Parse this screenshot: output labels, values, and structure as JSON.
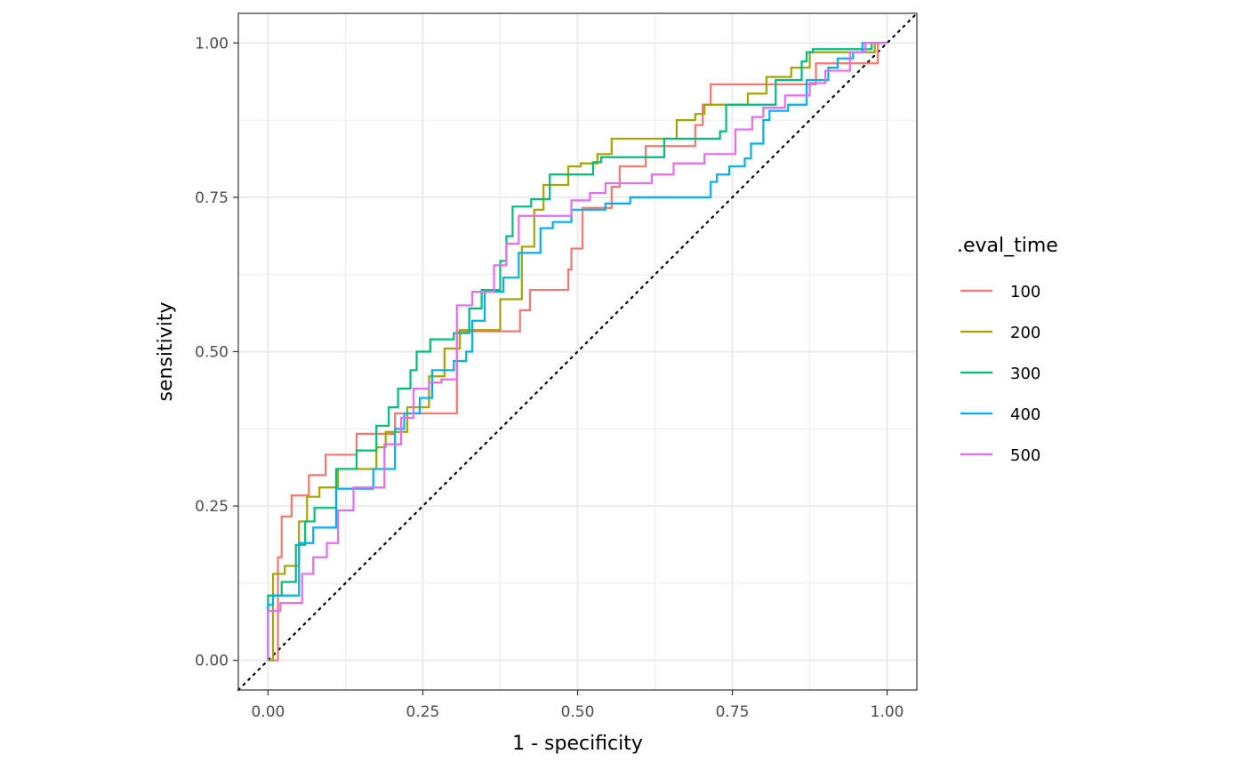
{
  "chart_data": {
    "type": "line",
    "xlabel": "1 - specificity",
    "ylabel": "sensitivity",
    "xlim": [
      -0.048,
      1.048
    ],
    "ylim": [
      -0.048,
      1.048
    ],
    "x_ticks": [
      0,
      0.25,
      0.5,
      0.75,
      1
    ],
    "x_tick_labels": [
      "0.00",
      "0.25",
      "0.50",
      "0.75",
      "1.00"
    ],
    "y_ticks": [
      0,
      0.25,
      0.5,
      0.75,
      1
    ],
    "y_tick_labels": [
      "0.00",
      "0.25",
      "0.50",
      "0.75",
      "1.00"
    ],
    "grid": true,
    "legend": {
      "title": ".eval_time",
      "position": "right"
    },
    "reference_line": {
      "style": "dotted",
      "color": "#000000",
      "from": [
        -0.048,
        -0.048
      ],
      "to": [
        1.048,
        1.048
      ]
    },
    "series": [
      {
        "name": "100",
        "color": "#F8766D",
        "points": [
          [
            0,
            0
          ],
          [
            0.016,
            0
          ],
          [
            0.016,
            0.167
          ],
          [
            0.022,
            0.167
          ],
          [
            0.022,
            0.233
          ],
          [
            0.038,
            0.233
          ],
          [
            0.038,
            0.267
          ],
          [
            0.066,
            0.267
          ],
          [
            0.066,
            0.3
          ],
          [
            0.093,
            0.3
          ],
          [
            0.093,
            0.333
          ],
          [
            0.143,
            0.333
          ],
          [
            0.143,
            0.367
          ],
          [
            0.205,
            0.367
          ],
          [
            0.205,
            0.4
          ],
          [
            0.305,
            0.4
          ],
          [
            0.305,
            0.533
          ],
          [
            0.407,
            0.533
          ],
          [
            0.407,
            0.567
          ],
          [
            0.423,
            0.567
          ],
          [
            0.423,
            0.6
          ],
          [
            0.485,
            0.6
          ],
          [
            0.485,
            0.633
          ],
          [
            0.49,
            0.633
          ],
          [
            0.49,
            0.667
          ],
          [
            0.508,
            0.667
          ],
          [
            0.508,
            0.733
          ],
          [
            0.555,
            0.733
          ],
          [
            0.555,
            0.767
          ],
          [
            0.568,
            0.767
          ],
          [
            0.568,
            0.8
          ],
          [
            0.61,
            0.8
          ],
          [
            0.61,
            0.833
          ],
          [
            0.69,
            0.833
          ],
          [
            0.69,
            0.867
          ],
          [
            0.702,
            0.867
          ],
          [
            0.702,
            0.9
          ],
          [
            0.715,
            0.9
          ],
          [
            0.715,
            0.933
          ],
          [
            0.885,
            0.933
          ],
          [
            0.885,
            0.967
          ],
          [
            0.985,
            0.967
          ],
          [
            0.985,
            1
          ],
          [
            1,
            1
          ]
        ]
      },
      {
        "name": "200",
        "color": "#A3A500",
        "points": [
          [
            0,
            0
          ],
          [
            0.008,
            0
          ],
          [
            0.008,
            0.14
          ],
          [
            0.027,
            0.14
          ],
          [
            0.027,
            0.153
          ],
          [
            0.05,
            0.153
          ],
          [
            0.05,
            0.225
          ],
          [
            0.063,
            0.225
          ],
          [
            0.063,
            0.265
          ],
          [
            0.083,
            0.265
          ],
          [
            0.083,
            0.28
          ],
          [
            0.113,
            0.28
          ],
          [
            0.113,
            0.31
          ],
          [
            0.175,
            0.31
          ],
          [
            0.175,
            0.345
          ],
          [
            0.19,
            0.345
          ],
          [
            0.19,
            0.37
          ],
          [
            0.225,
            0.37
          ],
          [
            0.225,
            0.41
          ],
          [
            0.26,
            0.41
          ],
          [
            0.26,
            0.46
          ],
          [
            0.285,
            0.46
          ],
          [
            0.285,
            0.505
          ],
          [
            0.31,
            0.505
          ],
          [
            0.31,
            0.535
          ],
          [
            0.375,
            0.535
          ],
          [
            0.375,
            0.585
          ],
          [
            0.41,
            0.585
          ],
          [
            0.41,
            0.67
          ],
          [
            0.43,
            0.67
          ],
          [
            0.43,
            0.73
          ],
          [
            0.445,
            0.73
          ],
          [
            0.445,
            0.77
          ],
          [
            0.485,
            0.77
          ],
          [
            0.485,
            0.8
          ],
          [
            0.505,
            0.8
          ],
          [
            0.505,
            0.805
          ],
          [
            0.532,
            0.805
          ],
          [
            0.532,
            0.82
          ],
          [
            0.555,
            0.82
          ],
          [
            0.555,
            0.845
          ],
          [
            0.66,
            0.845
          ],
          [
            0.66,
            0.875
          ],
          [
            0.69,
            0.875
          ],
          [
            0.69,
            0.885
          ],
          [
            0.705,
            0.885
          ],
          [
            0.705,
            0.9
          ],
          [
            0.775,
            0.9
          ],
          [
            0.775,
            0.918
          ],
          [
            0.805,
            0.918
          ],
          [
            0.805,
            0.945
          ],
          [
            0.845,
            0.945
          ],
          [
            0.845,
            0.96
          ],
          [
            0.875,
            0.96
          ],
          [
            0.875,
            0.985
          ],
          [
            0.98,
            0.985
          ],
          [
            0.98,
            1
          ],
          [
            1,
            1
          ]
        ]
      },
      {
        "name": "300",
        "color": "#00BF7D",
        "points": [
          [
            0,
            0
          ],
          [
            0,
            0.105
          ],
          [
            0.022,
            0.105
          ],
          [
            0.022,
            0.127
          ],
          [
            0.045,
            0.127
          ],
          [
            0.045,
            0.187
          ],
          [
            0.06,
            0.187
          ],
          [
            0.06,
            0.225
          ],
          [
            0.075,
            0.225
          ],
          [
            0.075,
            0.247
          ],
          [
            0.11,
            0.247
          ],
          [
            0.11,
            0.31
          ],
          [
            0.143,
            0.31
          ],
          [
            0.143,
            0.34
          ],
          [
            0.175,
            0.34
          ],
          [
            0.175,
            0.38
          ],
          [
            0.195,
            0.38
          ],
          [
            0.195,
            0.41
          ],
          [
            0.21,
            0.41
          ],
          [
            0.21,
            0.44
          ],
          [
            0.23,
            0.44
          ],
          [
            0.23,
            0.47
          ],
          [
            0.24,
            0.47
          ],
          [
            0.24,
            0.5
          ],
          [
            0.262,
            0.5
          ],
          [
            0.262,
            0.52
          ],
          [
            0.3,
            0.52
          ],
          [
            0.3,
            0.53
          ],
          [
            0.325,
            0.53
          ],
          [
            0.325,
            0.57
          ],
          [
            0.345,
            0.57
          ],
          [
            0.345,
            0.6
          ],
          [
            0.375,
            0.6
          ],
          [
            0.375,
            0.647
          ],
          [
            0.385,
            0.647
          ],
          [
            0.385,
            0.687
          ],
          [
            0.395,
            0.687
          ],
          [
            0.395,
            0.735
          ],
          [
            0.425,
            0.735
          ],
          [
            0.425,
            0.747
          ],
          [
            0.455,
            0.747
          ],
          [
            0.455,
            0.787
          ],
          [
            0.525,
            0.787
          ],
          [
            0.525,
            0.807
          ],
          [
            0.538,
            0.807
          ],
          [
            0.538,
            0.815
          ],
          [
            0.64,
            0.815
          ],
          [
            0.64,
            0.845
          ],
          [
            0.73,
            0.845
          ],
          [
            0.73,
            0.857
          ],
          [
            0.74,
            0.857
          ],
          [
            0.74,
            0.9
          ],
          [
            0.82,
            0.9
          ],
          [
            0.82,
            0.94
          ],
          [
            0.862,
            0.94
          ],
          [
            0.862,
            0.97
          ],
          [
            0.87,
            0.97
          ],
          [
            0.87,
            0.985
          ],
          [
            0.88,
            0.985
          ],
          [
            0.88,
            0.99
          ],
          [
            0.975,
            0.99
          ],
          [
            0.975,
            1
          ],
          [
            1,
            1
          ]
        ]
      },
      {
        "name": "400",
        "color": "#00B0F6",
        "points": [
          [
            0,
            0
          ],
          [
            0,
            0.09
          ],
          [
            0.008,
            0.09
          ],
          [
            0.008,
            0.105
          ],
          [
            0.05,
            0.105
          ],
          [
            0.05,
            0.19
          ],
          [
            0.073,
            0.19
          ],
          [
            0.073,
            0.215
          ],
          [
            0.11,
            0.215
          ],
          [
            0.11,
            0.278
          ],
          [
            0.17,
            0.278
          ],
          [
            0.17,
            0.31
          ],
          [
            0.205,
            0.31
          ],
          [
            0.205,
            0.375
          ],
          [
            0.22,
            0.375
          ],
          [
            0.22,
            0.4
          ],
          [
            0.245,
            0.4
          ],
          [
            0.245,
            0.425
          ],
          [
            0.265,
            0.425
          ],
          [
            0.265,
            0.47
          ],
          [
            0.3,
            0.47
          ],
          [
            0.3,
            0.485
          ],
          [
            0.32,
            0.485
          ],
          [
            0.32,
            0.5
          ],
          [
            0.33,
            0.5
          ],
          [
            0.33,
            0.52
          ],
          [
            0.33,
            0.52
          ],
          [
            0.33,
            0.55
          ],
          [
            0.35,
            0.55
          ],
          [
            0.35,
            0.597
          ],
          [
            0.38,
            0.597
          ],
          [
            0.38,
            0.62
          ],
          [
            0.405,
            0.62
          ],
          [
            0.405,
            0.66
          ],
          [
            0.44,
            0.66
          ],
          [
            0.44,
            0.7
          ],
          [
            0.46,
            0.7
          ],
          [
            0.46,
            0.71
          ],
          [
            0.49,
            0.71
          ],
          [
            0.49,
            0.73
          ],
          [
            0.545,
            0.73
          ],
          [
            0.545,
            0.74
          ],
          [
            0.585,
            0.74
          ],
          [
            0.585,
            0.75
          ],
          [
            0.715,
            0.75
          ],
          [
            0.715,
            0.775
          ],
          [
            0.725,
            0.775
          ],
          [
            0.725,
            0.787
          ],
          [
            0.745,
            0.787
          ],
          [
            0.745,
            0.8
          ],
          [
            0.77,
            0.8
          ],
          [
            0.77,
            0.813
          ],
          [
            0.78,
            0.813
          ],
          [
            0.78,
            0.837
          ],
          [
            0.8,
            0.837
          ],
          [
            0.8,
            0.875
          ],
          [
            0.81,
            0.875
          ],
          [
            0.81,
            0.89
          ],
          [
            0.84,
            0.89
          ],
          [
            0.84,
            0.9
          ],
          [
            0.87,
            0.9
          ],
          [
            0.87,
            0.94
          ],
          [
            0.905,
            0.94
          ],
          [
            0.905,
            0.96
          ],
          [
            0.92,
            0.96
          ],
          [
            0.92,
            0.975
          ],
          [
            0.945,
            0.975
          ],
          [
            0.945,
            0.985
          ],
          [
            0.96,
            0.985
          ],
          [
            0.96,
            1
          ],
          [
            1,
            1
          ]
        ]
      },
      {
        "name": "500",
        "color": "#E76BF3",
        "points": [
          [
            0,
            0
          ],
          [
            0,
            0.08
          ],
          [
            0.02,
            0.08
          ],
          [
            0.02,
            0.093
          ],
          [
            0.055,
            0.093
          ],
          [
            0.055,
            0.14
          ],
          [
            0.073,
            0.14
          ],
          [
            0.073,
            0.167
          ],
          [
            0.095,
            0.167
          ],
          [
            0.095,
            0.19
          ],
          [
            0.113,
            0.19
          ],
          [
            0.113,
            0.243
          ],
          [
            0.138,
            0.243
          ],
          [
            0.138,
            0.28
          ],
          [
            0.188,
            0.28
          ],
          [
            0.188,
            0.35
          ],
          [
            0.215,
            0.35
          ],
          [
            0.215,
            0.393
          ],
          [
            0.235,
            0.393
          ],
          [
            0.235,
            0.44
          ],
          [
            0.26,
            0.44
          ],
          [
            0.26,
            0.45
          ],
          [
            0.28,
            0.45
          ],
          [
            0.28,
            0.455
          ],
          [
            0.305,
            0.455
          ],
          [
            0.305,
            0.575
          ],
          [
            0.33,
            0.575
          ],
          [
            0.33,
            0.597
          ],
          [
            0.365,
            0.597
          ],
          [
            0.365,
            0.64
          ],
          [
            0.385,
            0.64
          ],
          [
            0.385,
            0.675
          ],
          [
            0.405,
            0.675
          ],
          [
            0.405,
            0.72
          ],
          [
            0.49,
            0.72
          ],
          [
            0.49,
            0.745
          ],
          [
            0.52,
            0.745
          ],
          [
            0.52,
            0.757
          ],
          [
            0.545,
            0.757
          ],
          [
            0.545,
            0.773
          ],
          [
            0.62,
            0.773
          ],
          [
            0.62,
            0.787
          ],
          [
            0.655,
            0.787
          ],
          [
            0.655,
            0.805
          ],
          [
            0.705,
            0.805
          ],
          [
            0.705,
            0.82
          ],
          [
            0.755,
            0.82
          ],
          [
            0.755,
            0.86
          ],
          [
            0.782,
            0.86
          ],
          [
            0.782,
            0.88
          ],
          [
            0.8,
            0.88
          ],
          [
            0.8,
            0.895
          ],
          [
            0.835,
            0.895
          ],
          [
            0.835,
            0.915
          ],
          [
            0.875,
            0.915
          ],
          [
            0.875,
            0.935
          ],
          [
            0.9,
            0.935
          ],
          [
            0.9,
            0.955
          ],
          [
            0.94,
            0.955
          ],
          [
            0.94,
            0.985
          ],
          [
            0.965,
            0.985
          ],
          [
            0.965,
            1
          ],
          [
            1,
            1
          ]
        ]
      }
    ]
  }
}
